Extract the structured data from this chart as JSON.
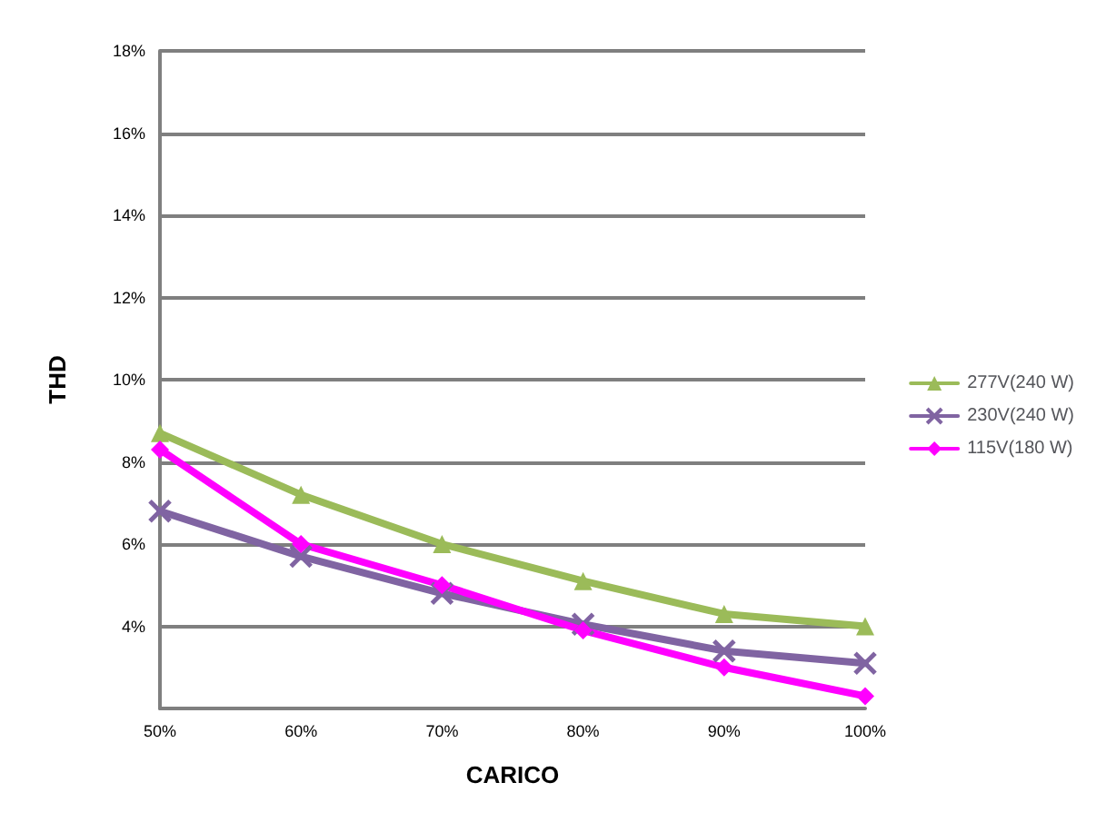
{
  "chart_data": {
    "type": "line",
    "xlabel": "CARICO",
    "ylabel": "THD",
    "categories": [
      "50%",
      "60%",
      "70%",
      "80%",
      "90%",
      "100%"
    ],
    "series": [
      {
        "name": "277V(240 W)",
        "color": "#9bbb59",
        "marker": "triangle",
        "values": [
          8.7,
          7.2,
          6.0,
          5.1,
          4.3,
          4.0
        ]
      },
      {
        "name": "230V(240 W)",
        "color": "#8064a2",
        "marker": "cross",
        "values": [
          6.8,
          5.7,
          4.8,
          4.05,
          3.4,
          3.1
        ]
      },
      {
        "name": "115V(180 W)",
        "color": "#ff00ff",
        "marker": "diamond",
        "values": [
          8.3,
          6.0,
          5.0,
          3.9,
          3.0,
          2.3
        ]
      }
    ],
    "ylim": [
      2,
      18
    ],
    "yticks": [
      {
        "value": 4,
        "label": "4%"
      },
      {
        "value": 6,
        "label": "6%"
      },
      {
        "value": 8,
        "label": "8%"
      },
      {
        "value": 10,
        "label": "10%"
      },
      {
        "value": 12,
        "label": "12%"
      },
      {
        "value": 14,
        "label": "14%"
      },
      {
        "value": 16,
        "label": "16%"
      },
      {
        "value": 18,
        "label": "18%"
      }
    ],
    "grid": "y",
    "legend": "right",
    "line_style": "solid"
  }
}
